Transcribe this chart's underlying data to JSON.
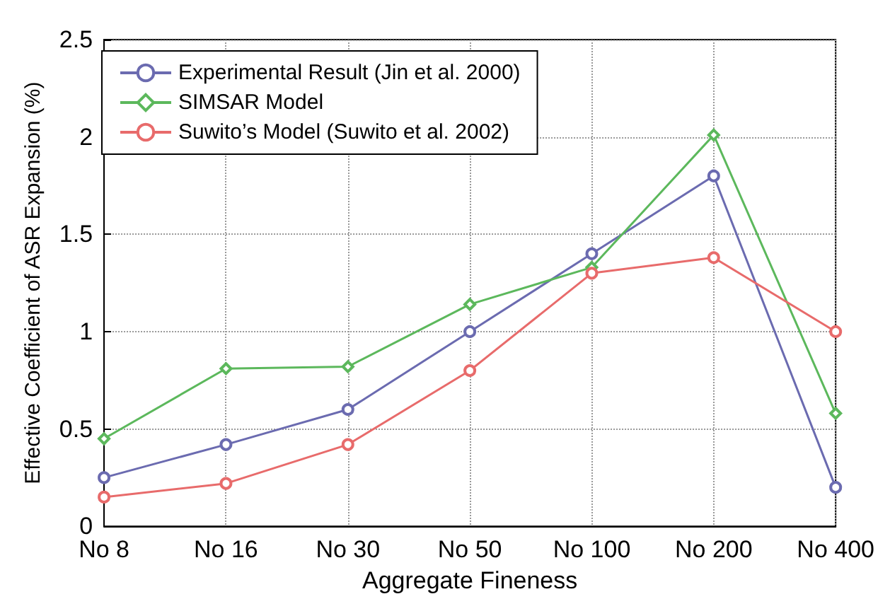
{
  "chart_data": {
    "type": "line",
    "xlabel": "Aggregate Fineness",
    "ylabel": "Effective Coefficient of ASR Expansion (%)",
    "categories": [
      "No 8",
      "No 16",
      "No 30",
      "No 50",
      "No 100",
      "No 200",
      "No 400"
    ],
    "series": [
      {
        "name": "Experimental Result (Jin et al. 2000)",
        "color": "#6b6bb0",
        "marker": "circle",
        "values": [
          0.25,
          0.42,
          0.6,
          1.0,
          1.4,
          1.8,
          0.2
        ]
      },
      {
        "name": "SIMSAR Model",
        "color": "#5cb85c",
        "marker": "diamond",
        "values": [
          0.45,
          0.81,
          0.82,
          1.14,
          1.33,
          2.01,
          0.58
        ]
      },
      {
        "name": "Suwito’s Model (Suwito et al. 2002)",
        "color": "#e86b6b",
        "marker": "circle",
        "values": [
          0.15,
          0.22,
          0.42,
          0.8,
          1.3,
          1.38,
          1.0
        ]
      }
    ],
    "ylim": [
      0,
      2.5
    ],
    "yticks": [
      0,
      0.5,
      1,
      1.5,
      2,
      2.5
    ],
    "grid": true,
    "legend": "top left",
    "line_style": "solid"
  }
}
